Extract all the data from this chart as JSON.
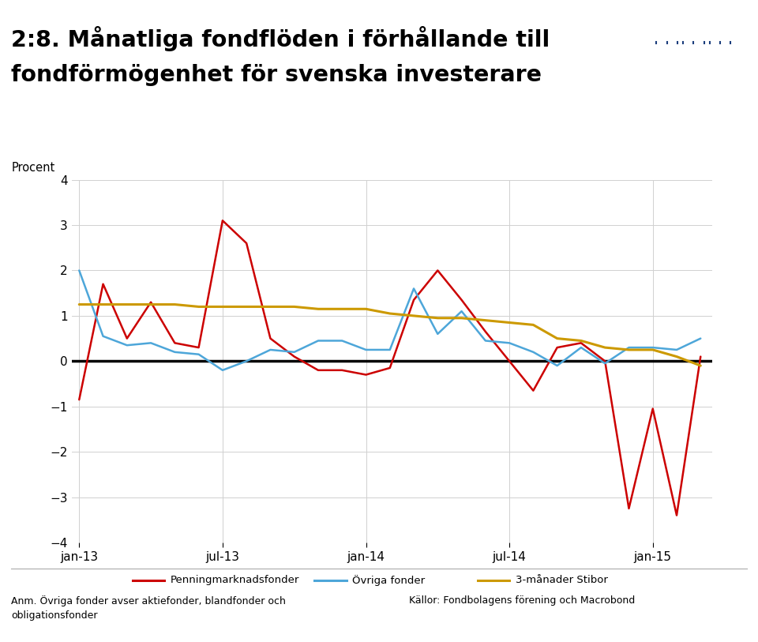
{
  "title_line1": "2:8. Månatliga fondflöden i förhållande till",
  "title_line2": "fondförmögenhet för svenska investerare",
  "ylabel": "Procent",
  "ylim": [
    -4,
    4
  ],
  "yticks": [
    -4,
    -3,
    -2,
    -1,
    0,
    1,
    2,
    3,
    4
  ],
  "xtick_labels": [
    "jan-13",
    "jul-13",
    "jan-14",
    "jul-14",
    "jan-15"
  ],
  "xtick_pos": [
    0,
    6,
    12,
    18,
    24
  ],
  "footnote_left": "Anm. Övriga fonder avser aktiefonder, blandfonder och\nobligationsfonder",
  "footnote_right": "Källor: Fondbolagens förening och Macrobond",
  "legend_labels": [
    "Penningmarknadsfonder",
    "Övriga fonder",
    "3-månader Stibor"
  ],
  "line_colors": [
    "#cc0000",
    "#4da6d9",
    "#cc9900"
  ],
  "background_color": "#ffffff",
  "logo_bg": "#1a3d7c",
  "logo_text_color": "#ffffff",
  "x_months": [
    0,
    1,
    2,
    3,
    4,
    5,
    6,
    7,
    8,
    9,
    10,
    11,
    12,
    13,
    14,
    15,
    16,
    17,
    18,
    19,
    20,
    21,
    22,
    23,
    24,
    25,
    26
  ],
  "penning": [
    -0.85,
    1.7,
    0.5,
    1.3,
    0.4,
    0.3,
    3.1,
    2.6,
    0.5,
    0.1,
    -0.2,
    -0.2,
    -0.3,
    -0.15,
    1.35,
    2.0,
    1.35,
    0.65,
    0.0,
    -0.65,
    0.3,
    0.4,
    0.0,
    -3.25,
    -1.05,
    -3.4,
    0.1
  ],
  "ovriga": [
    2.0,
    0.55,
    0.35,
    0.4,
    0.2,
    0.15,
    -0.2,
    0.0,
    0.25,
    0.2,
    0.45,
    0.45,
    0.25,
    0.25,
    1.6,
    0.6,
    1.1,
    0.45,
    0.4,
    0.2,
    -0.1,
    0.3,
    -0.05,
    0.3,
    0.3,
    0.25,
    0.5
  ],
  "stibor": [
    1.25,
    1.25,
    1.25,
    1.25,
    1.25,
    1.2,
    1.2,
    1.2,
    1.2,
    1.2,
    1.15,
    1.15,
    1.15,
    1.05,
    1.0,
    0.95,
    0.95,
    0.9,
    0.85,
    0.8,
    0.5,
    0.45,
    0.3,
    0.25,
    0.25,
    0.1,
    -0.1
  ]
}
